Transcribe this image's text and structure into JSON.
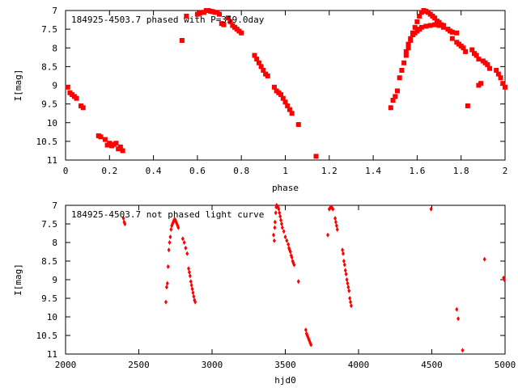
{
  "chart_data": [
    {
      "type": "scatter",
      "title": "184925-4503.7 phased with P=359.0day",
      "xlabel": "phase",
      "ylabel": "I[mag]",
      "xlim": [
        0,
        2
      ],
      "ylim": [
        11,
        7
      ],
      "y_inverted": true,
      "x_ticks": [
        0,
        0.2,
        0.4,
        0.6,
        0.8,
        1,
        1.2,
        1.4,
        1.6,
        1.8,
        2
      ],
      "y_ticks": [
        7,
        7.5,
        8,
        8.5,
        9,
        9.5,
        10,
        10.5,
        11
      ],
      "x_tick_labels": [
        "0",
        "0.2",
        "0.4",
        "0.6",
        "0.8",
        "1",
        "1.2",
        "1.4",
        "1.6",
        "1.8",
        "2"
      ],
      "y_tick_labels": [
        "7",
        "7.5",
        "8",
        "8.5",
        "9",
        "9.5",
        "10",
        "10.5",
        "11"
      ],
      "grid": false,
      "marker_color": "#ff0000",
      "series": [
        {
          "points": [
            [
              0.01,
              9.05
            ],
            [
              0.02,
              9.2
            ],
            [
              0.03,
              9.25
            ],
            [
              0.04,
              9.3
            ],
            [
              0.05,
              9.35
            ],
            [
              0.07,
              9.55
            ],
            [
              0.08,
              9.6
            ],
            [
              0.15,
              10.35
            ],
            [
              0.16,
              10.38
            ],
            [
              0.18,
              10.45
            ],
            [
              0.19,
              10.6
            ],
            [
              0.2,
              10.55
            ],
            [
              0.21,
              10.62
            ],
            [
              0.22,
              10.58
            ],
            [
              0.23,
              10.55
            ],
            [
              0.24,
              10.7
            ],
            [
              0.25,
              10.65
            ],
            [
              0.26,
              10.75
            ],
            [
              0.53,
              7.8
            ],
            [
              0.55,
              7.15
            ],
            [
              0.6,
              7.1
            ],
            [
              0.61,
              7.08
            ],
            [
              0.62,
              7.05
            ],
            [
              0.63,
              7.05
            ],
            [
              0.64,
              7.0
            ],
            [
              0.65,
              7.0
            ],
            [
              0.66,
              7.02
            ],
            [
              0.67,
              7.03
            ],
            [
              0.68,
              7.05
            ],
            [
              0.69,
              7.05
            ],
            [
              0.7,
              7.1
            ],
            [
              0.71,
              7.35
            ],
            [
              0.72,
              7.38
            ],
            [
              0.74,
              7.2
            ],
            [
              0.75,
              7.3
            ],
            [
              0.76,
              7.4
            ],
            [
              0.77,
              7.45
            ],
            [
              0.78,
              7.5
            ],
            [
              0.79,
              7.55
            ],
            [
              0.8,
              7.6
            ],
            [
              0.86,
              8.2
            ],
            [
              0.87,
              8.3
            ],
            [
              0.88,
              8.4
            ],
            [
              0.89,
              8.5
            ],
            [
              0.9,
              8.6
            ],
            [
              0.91,
              8.7
            ],
            [
              0.92,
              8.75
            ],
            [
              0.95,
              9.05
            ],
            [
              0.96,
              9.15
            ],
            [
              0.97,
              9.2
            ],
            [
              0.98,
              9.25
            ],
            [
              0.99,
              9.35
            ],
            [
              1.0,
              9.45
            ],
            [
              1.01,
              9.55
            ],
            [
              1.02,
              9.65
            ],
            [
              1.03,
              9.75
            ],
            [
              1.06,
              10.05
            ],
            [
              1.14,
              10.9
            ],
            [
              1.48,
              9.6
            ],
            [
              1.49,
              9.4
            ],
            [
              1.5,
              9.3
            ],
            [
              1.51,
              9.15
            ],
            [
              1.52,
              8.8
            ],
            [
              1.53,
              8.6
            ],
            [
              1.54,
              8.4
            ],
            [
              1.55,
              8.2
            ],
            [
              1.56,
              8.0
            ],
            [
              1.57,
              7.8
            ],
            [
              1.58,
              7.6
            ],
            [
              1.59,
              7.45
            ],
            [
              1.6,
              7.3
            ],
            [
              1.61,
              7.15
            ],
            [
              1.62,
              7.05
            ],
            [
              1.63,
              7.0
            ],
            [
              1.64,
              7.02
            ],
            [
              1.65,
              7.05
            ],
            [
              1.66,
              7.1
            ],
            [
              1.67,
              7.15
            ],
            [
              1.68,
              7.2
            ],
            [
              1.69,
              7.28
            ],
            [
              1.7,
              7.32
            ],
            [
              1.71,
              7.38
            ],
            [
              1.72,
              7.4
            ],
            [
              1.55,
              8.1
            ],
            [
              1.56,
              7.9
            ],
            [
              1.57,
              7.75
            ],
            [
              1.58,
              7.65
            ],
            [
              1.59,
              7.6
            ],
            [
              1.6,
              7.55
            ],
            [
              1.61,
              7.5
            ],
            [
              1.62,
              7.45
            ],
            [
              1.64,
              7.42
            ],
            [
              1.66,
              7.4
            ],
            [
              1.68,
              7.38
            ],
            [
              1.7,
              7.4
            ],
            [
              1.72,
              7.45
            ],
            [
              1.74,
              7.5
            ],
            [
              1.75,
              7.55
            ],
            [
              1.76,
              7.58
            ],
            [
              1.78,
              7.6
            ],
            [
              1.76,
              7.75
            ],
            [
              1.78,
              7.85
            ],
            [
              1.79,
              7.9
            ],
            [
              1.8,
              7.95
            ],
            [
              1.81,
              8.0
            ],
            [
              1.82,
              8.1
            ],
            [
              1.83,
              9.55
            ],
            [
              1.85,
              8.05
            ],
            [
              1.86,
              8.15
            ],
            [
              1.87,
              8.2
            ],
            [
              1.88,
              8.3
            ],
            [
              1.88,
              9.0
            ],
            [
              1.89,
              8.95
            ],
            [
              1.9,
              8.35
            ],
            [
              1.91,
              8.4
            ],
            [
              1.92,
              8.45
            ],
            [
              1.93,
              8.55
            ],
            [
              1.96,
              8.6
            ],
            [
              1.97,
              8.7
            ],
            [
              1.98,
              8.8
            ],
            [
              1.99,
              8.95
            ],
            [
              2.0,
              9.05
            ]
          ]
        }
      ]
    },
    {
      "type": "scatter",
      "title": "184925-4503.7 not phased light curve",
      "xlabel": "hjd0",
      "ylabel": "I[mag]",
      "xlim": [
        2000,
        5000
      ],
      "ylim": [
        11,
        7
      ],
      "y_inverted": true,
      "x_ticks": [
        2000,
        2500,
        3000,
        3500,
        4000,
        4500,
        5000
      ],
      "y_ticks": [
        7,
        7.5,
        8,
        8.5,
        9,
        9.5,
        10,
        10.5,
        11
      ],
      "x_tick_labels": [
        "2000",
        "2500",
        "3000",
        "3500",
        "4000",
        "4500",
        "5000"
      ],
      "y_tick_labels": [
        "7",
        "7.5",
        "8",
        "8.5",
        "9",
        "9.5",
        "10",
        "10.5",
        "11"
      ],
      "grid": false,
      "marker_color": "#ff0000",
      "series": [
        {
          "points": [
            [
              2395,
              7.35
            ],
            [
              2400,
              7.45
            ],
            [
              2405,
              7.5
            ],
            [
              2685,
              9.6
            ],
            [
              2690,
              9.2
            ],
            [
              2695,
              9.1
            ],
            [
              2700,
              8.65
            ],
            [
              2705,
              8.2
            ],
            [
              2710,
              8.0
            ],
            [
              2715,
              7.85
            ],
            [
              2720,
              7.65
            ],
            [
              2725,
              7.55
            ],
            [
              2730,
              7.5
            ],
            [
              2735,
              7.45
            ],
            [
              2740,
              7.4
            ],
            [
              2745,
              7.38
            ],
            [
              2750,
              7.4
            ],
            [
              2755,
              7.45
            ],
            [
              2760,
              7.5
            ],
            [
              2765,
              7.55
            ],
            [
              2770,
              7.6
            ],
            [
              2800,
              7.9
            ],
            [
              2810,
              8.0
            ],
            [
              2820,
              8.15
            ],
            [
              2830,
              8.3
            ],
            [
              2840,
              8.7
            ],
            [
              2845,
              8.8
            ],
            [
              2850,
              8.9
            ],
            [
              2855,
              9.05
            ],
            [
              2860,
              9.15
            ],
            [
              2865,
              9.25
            ],
            [
              2870,
              9.35
            ],
            [
              2875,
              9.45
            ],
            [
              2880,
              9.55
            ],
            [
              2885,
              9.6
            ],
            [
              3420,
              7.8
            ],
            [
              3425,
              7.95
            ],
            [
              3428,
              7.6
            ],
            [
              3430,
              7.45
            ],
            [
              3435,
              7.2
            ],
            [
              3438,
              7.05
            ],
            [
              3440,
              7.0
            ],
            [
              3445,
              7.02
            ],
            [
              3450,
              7.05
            ],
            [
              3455,
              7.1
            ],
            [
              3460,
              7.2
            ],
            [
              3465,
              7.3
            ],
            [
              3470,
              7.4
            ],
            [
              3475,
              7.5
            ],
            [
              3480,
              7.6
            ],
            [
              3490,
              7.7
            ],
            [
              3500,
              7.85
            ],
            [
              3510,
              7.95
            ],
            [
              3520,
              8.05
            ],
            [
              3525,
              8.15
            ],
            [
              3530,
              8.2
            ],
            [
              3535,
              8.25
            ],
            [
              3540,
              8.35
            ],
            [
              3545,
              8.4
            ],
            [
              3550,
              8.5
            ],
            [
              3555,
              8.55
            ],
            [
              3560,
              8.6
            ],
            [
              3590,
              9.05
            ],
            [
              3640,
              10.35
            ],
            [
              3645,
              10.45
            ],
            [
              3650,
              10.5
            ],
            [
              3655,
              10.55
            ],
            [
              3660,
              10.6
            ],
            [
              3665,
              10.65
            ],
            [
              3670,
              10.7
            ],
            [
              3675,
              10.75
            ],
            [
              3790,
              7.8
            ],
            [
              3800,
              7.1
            ],
            [
              3805,
              7.08
            ],
            [
              3810,
              7.05
            ],
            [
              3815,
              7.05
            ],
            [
              3820,
              7.08
            ],
            [
              3825,
              7.1
            ],
            [
              3840,
              7.35
            ],
            [
              3845,
              7.45
            ],
            [
              3850,
              7.55
            ],
            [
              3855,
              7.65
            ],
            [
              3890,
              8.2
            ],
            [
              3895,
              8.3
            ],
            [
              3900,
              8.5
            ],
            [
              3905,
              8.6
            ],
            [
              3910,
              8.75
            ],
            [
              3915,
              8.85
            ],
            [
              3920,
              9.0
            ],
            [
              3925,
              9.1
            ],
            [
              3930,
              9.2
            ],
            [
              3935,
              9.3
            ],
            [
              3940,
              9.5
            ],
            [
              3945,
              9.6
            ],
            [
              3950,
              9.7
            ],
            [
              4495,
              7.1
            ],
            [
              4670,
              9.8
            ],
            [
              4680,
              10.05
            ],
            [
              4710,
              10.9
            ],
            [
              4860,
              8.45
            ],
            [
              4990,
              8.95
            ],
            [
              4995,
              9.0
            ]
          ]
        }
      ]
    }
  ]
}
